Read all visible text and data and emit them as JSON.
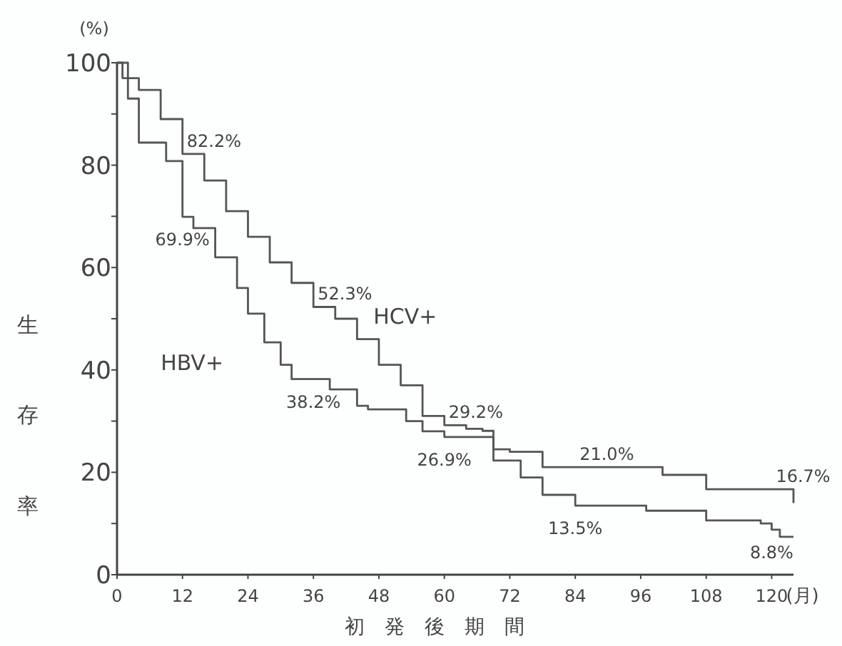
{
  "chart_data": {
    "type": "step",
    "xlabel": "初発後期間",
    "ylabel": "生存率",
    "xlim": [
      0,
      124
    ],
    "ylim": [
      0,
      100
    ],
    "xticks": [
      0,
      12,
      24,
      36,
      48,
      60,
      72,
      84,
      96,
      108,
      120
    ],
    "yticks": [
      0,
      {
        "value": 10,
        "label": null
      },
      20,
      {
        "value": 30,
        "label": null
      },
      40,
      {
        "value": 50,
        "label": null
      },
      60,
      {
        "value": 70,
        "label": null
      },
      80,
      {
        "value": 90,
        "label": null
      },
      100
    ],
    "series": [
      {
        "name": "HCV+",
        "color": "#555555",
        "x": [
          0,
          2,
          4,
          8,
          12,
          16,
          20,
          24,
          28,
          32,
          36,
          40,
          44,
          48,
          52,
          56,
          60,
          64,
          67,
          69,
          72,
          78,
          100,
          108,
          124
        ],
        "values": [
          100,
          97,
          94.7,
          89,
          82.2,
          77,
          71,
          66,
          61,
          57,
          52.3,
          50,
          46,
          41,
          37,
          31,
          29.2,
          28.5,
          28.1,
          24.5,
          24,
          21.0,
          19.5,
          16.7,
          14.0
        ]
      },
      {
        "name": "HBV+",
        "color": "#555555",
        "x": [
          0,
          1,
          2,
          4,
          9,
          12,
          14,
          18,
          22,
          24,
          27,
          30,
          32,
          39,
          44,
          46,
          53,
          56,
          60,
          69,
          74,
          78,
          84,
          97,
          108,
          118,
          120,
          121.5,
          124
        ],
        "values": [
          100,
          97,
          93,
          84.4,
          80.8,
          69.9,
          67.7,
          62,
          56,
          51,
          45.4,
          41,
          38.2,
          36.2,
          33,
          32.3,
          30,
          28,
          26.9,
          22.3,
          19,
          15.6,
          13.5,
          12.5,
          10.6,
          10,
          8.8,
          7.4,
          7.4
        ]
      }
    ],
    "annotations": [
      "(%)",
      "(月)",
      {
        "text": "82.2%",
        "x": 12,
        "y": 82.2
      },
      {
        "text": "69.9%",
        "x": 12,
        "y": 69.9
      },
      {
        "text": "52.3%",
        "x": 36,
        "y": 52.3
      },
      {
        "text": "38.2%",
        "x": 36,
        "y": 38.2
      },
      {
        "text": "29.2%",
        "x": 60,
        "y": 29.2
      },
      {
        "text": "26.9%",
        "x": 60,
        "y": 26.9
      },
      {
        "text": "21.0%",
        "x": 84,
        "y": 21.0
      },
      {
        "text": "13.5%",
        "x": 84,
        "y": 13.5
      },
      {
        "text": "16.7%",
        "x": 120,
        "y": 16.7
      },
      {
        "text": "8.8%",
        "x": 120,
        "y": 8.8
      }
    ]
  }
}
